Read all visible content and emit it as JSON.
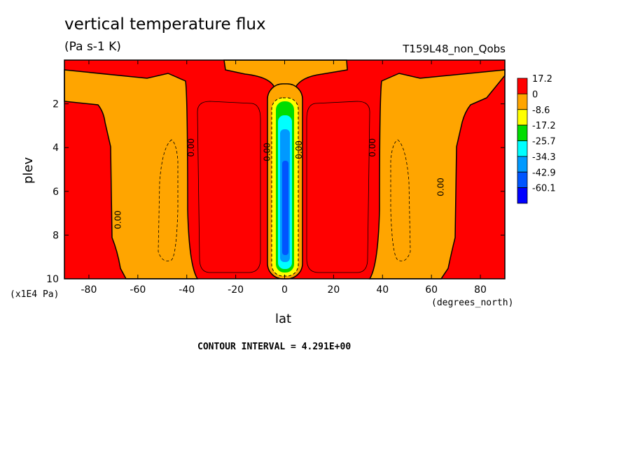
{
  "chart_data": {
    "type": "heatmap",
    "title": "vertical temperature flux",
    "units": "(Pa s-1 K)",
    "case_label": "T159L48_non_Qobs",
    "xlabel": "lat",
    "ylabel": "plev",
    "x_unit_label": "(degrees_north)",
    "y_unit_label": "(x1E4 Pa)",
    "xlim": [
      -90,
      90
    ],
    "ylim": [
      10,
      0
    ],
    "x_ticks": [
      -80,
      -60,
      -40,
      -20,
      0,
      20,
      40,
      60,
      80
    ],
    "y_ticks": [
      2,
      4,
      6,
      8,
      10
    ],
    "contour_interval_text": "CONTOUR INTERVAL = 4.291E+00",
    "colorbar": {
      "levels": [
        "17.2",
        "0",
        "-8.6",
        "-17.2",
        "-25.7",
        "-34.3",
        "-42.9",
        "-60.1"
      ],
      "colors": [
        "#ff0000",
        "#ffa500",
        "#ffff00",
        "#00dd00",
        "#00ffff",
        "#0099ff",
        "#0055ff",
        "#0000ff"
      ]
    },
    "contour_labels": [
      {
        "text": "0.00",
        "lat": -67,
        "plev": 7.3
      },
      {
        "text": "0.00",
        "lat": -37,
        "plev": 4.0
      },
      {
        "text": "0.00",
        "lat": -6,
        "plev": 4.2
      },
      {
        "text": "0.00",
        "lat": 7,
        "plev": 4.1
      },
      {
        "text": "0.00",
        "lat": 37,
        "plev": 4.0
      },
      {
        "text": "0.00",
        "lat": 65,
        "plev": 5.8
      }
    ]
  }
}
